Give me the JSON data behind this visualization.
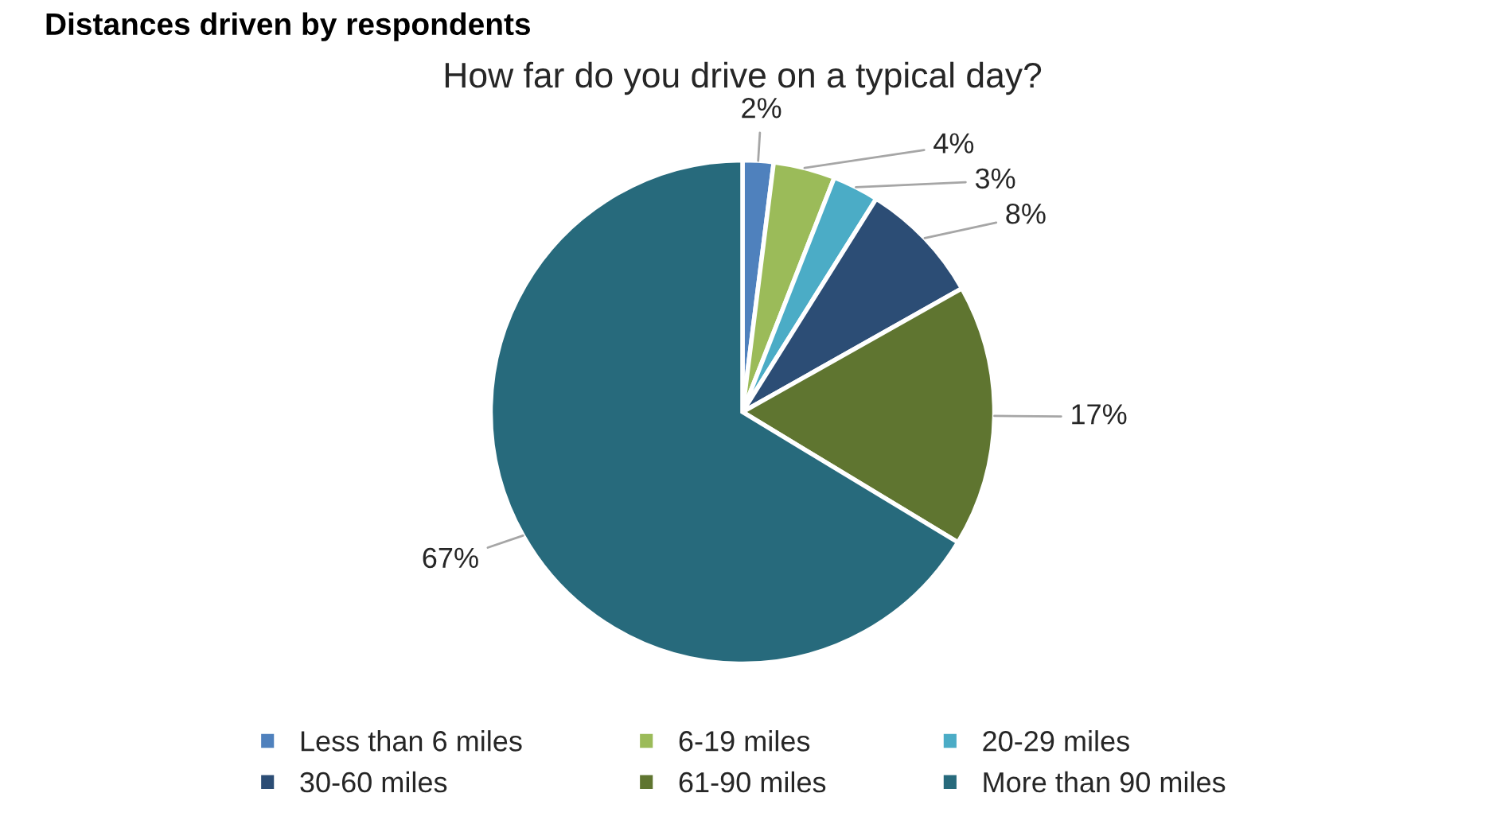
{
  "chart_data": {
    "type": "pie",
    "title": "Distances driven by respondents",
    "subtitle": "How far do you drive on a typical day?",
    "categories": [
      "Less than 6 miles",
      "6-19 miles",
      "20-29 miles",
      "30-60 miles",
      "61-90 miles",
      "More than 90 miles"
    ],
    "values": [
      2,
      4,
      3,
      8,
      17,
      67
    ],
    "colors": [
      "#4f81bd",
      "#9bbb59",
      "#4bacc6",
      "#2c4d75",
      "#5f7530",
      "#276a7c"
    ],
    "value_labels": [
      "2%",
      "4%",
      "3%",
      "8%",
      "17%",
      "67%"
    ],
    "legend": "bottom"
  }
}
